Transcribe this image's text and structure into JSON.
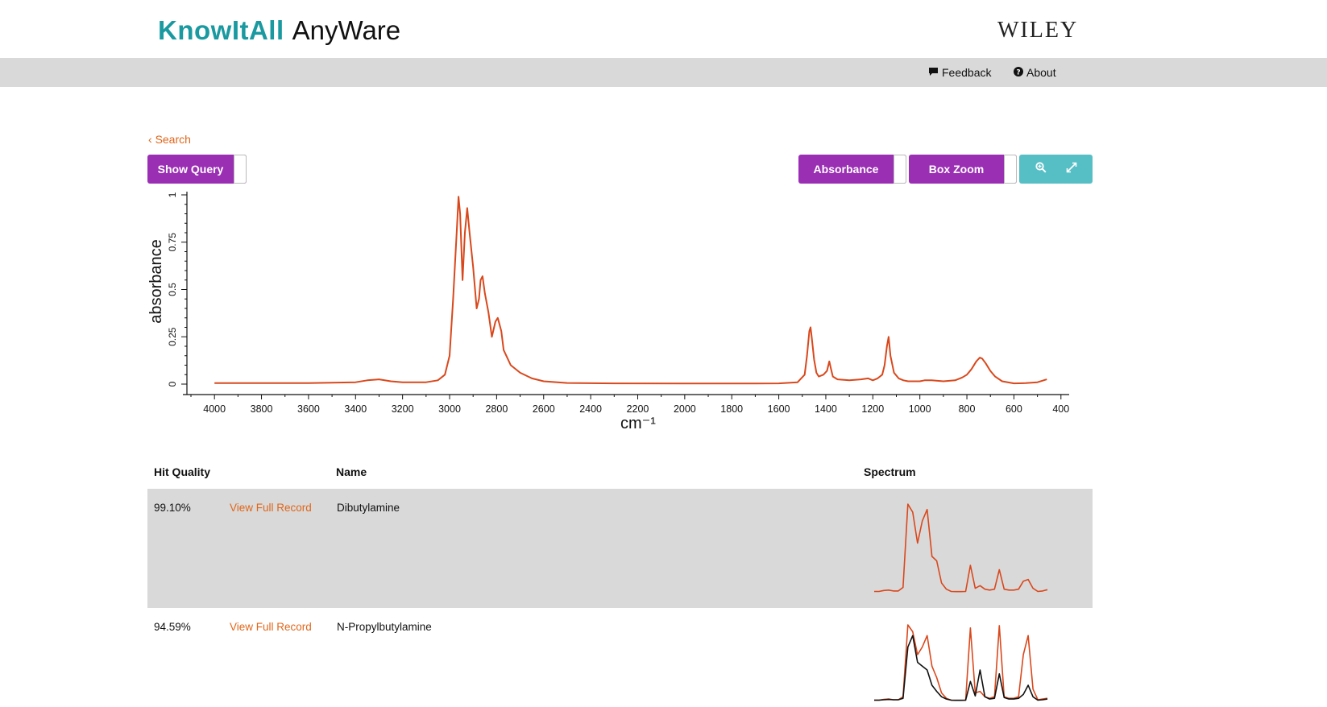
{
  "header": {
    "brand_bold": "KnowItAll",
    "brand_light": "AnyWare",
    "publisher": "WILEY"
  },
  "nav": {
    "feedback_label": "Feedback",
    "about_label": "About",
    "feedback_icon": "comment-icon",
    "about_icon": "question-circle-icon"
  },
  "toolbar": {
    "back_label": "Search",
    "show_query_label": "Show Query",
    "absorbance_label": "Absorbance",
    "box_zoom_label": "Box Zoom",
    "zoom_icon": "zoom-in-icon",
    "expand_icon": "expand-icon"
  },
  "colors": {
    "brand_teal": "#1a9aa0",
    "accent_orange": "#e0661a",
    "button_purple": "#9a2fb3",
    "button_teal": "#56bfc6",
    "spectrum_line": "#d9481c",
    "reference_line": "#111111"
  },
  "chart_data": {
    "type": "line",
    "xlabel": "cm⁻¹",
    "ylabel": "absorbance",
    "xlim": [
      4100,
      365
    ],
    "ylim": [
      0,
      1
    ],
    "x_ticks": [
      4000,
      3800,
      3600,
      3400,
      3200,
      3000,
      2800,
      2600,
      2400,
      2200,
      2000,
      1800,
      1600,
      1400,
      1200,
      1000,
      800,
      600,
      400
    ],
    "y_ticks": [
      0,
      0.25,
      0.5,
      0.75,
      1
    ],
    "series": [
      {
        "x": [
          4000,
          3600,
          3400,
          3350,
          3300,
          3250,
          3200,
          3100,
          3050,
          3020,
          3000,
          2985,
          2970,
          2962,
          2955,
          2945,
          2935,
          2925,
          2915,
          2900,
          2885,
          2875,
          2868,
          2860,
          2850,
          2835,
          2820,
          2805,
          2795,
          2780,
          2770,
          2740,
          2700,
          2650,
          2600,
          2500,
          2300,
          2000,
          1700,
          1600,
          1520,
          1490,
          1480,
          1470,
          1465,
          1460,
          1450,
          1440,
          1430,
          1410,
          1395,
          1385,
          1378,
          1370,
          1350,
          1300,
          1250,
          1220,
          1200,
          1180,
          1160,
          1150,
          1140,
          1133,
          1125,
          1110,
          1090,
          1070,
          1050,
          1000,
          980,
          950,
          900,
          850,
          820,
          800,
          780,
          760,
          745,
          735,
          720,
          700,
          680,
          650,
          600,
          550,
          500,
          460
        ],
        "y": [
          0.005,
          0.005,
          0.01,
          0.02,
          0.025,
          0.015,
          0.01,
          0.01,
          0.02,
          0.05,
          0.15,
          0.45,
          0.8,
          0.99,
          0.9,
          0.55,
          0.8,
          0.93,
          0.8,
          0.62,
          0.4,
          0.45,
          0.55,
          0.57,
          0.48,
          0.38,
          0.25,
          0.33,
          0.35,
          0.28,
          0.18,
          0.1,
          0.06,
          0.03,
          0.015,
          0.006,
          0.004,
          0.003,
          0.003,
          0.004,
          0.01,
          0.05,
          0.15,
          0.28,
          0.3,
          0.25,
          0.13,
          0.06,
          0.04,
          0.05,
          0.07,
          0.12,
          0.08,
          0.04,
          0.025,
          0.02,
          0.025,
          0.03,
          0.02,
          0.03,
          0.05,
          0.1,
          0.2,
          0.25,
          0.15,
          0.06,
          0.03,
          0.02,
          0.015,
          0.015,
          0.02,
          0.02,
          0.015,
          0.02,
          0.035,
          0.05,
          0.08,
          0.12,
          0.14,
          0.135,
          0.11,
          0.07,
          0.04,
          0.015,
          0.004,
          0.005,
          0.01,
          0.025
        ]
      }
    ]
  },
  "results": {
    "headers": [
      "Hit Quality",
      "Name",
      "Spectrum"
    ],
    "link_label": "View Full Record",
    "rows": [
      {
        "hit_quality": "99.10%",
        "name": "Dibutylamine",
        "spectra": [
          {
            "color": "#d9481c",
            "y": [
              0.005,
              0.005,
              0.015,
              0.02,
              0.01,
              0.01,
              0.05,
              0.99,
              0.9,
              0.55,
              0.8,
              0.93,
              0.4,
              0.35,
              0.1,
              0.03,
              0.005,
              0.003,
              0.003,
              0.005,
              0.3,
              0.04,
              0.07,
              0.03,
              0.02,
              0.03,
              0.25,
              0.03,
              0.02,
              0.02,
              0.03,
              0.12,
              0.14,
              0.04,
              0.005,
              0.01,
              0.025
            ]
          }
        ]
      },
      {
        "hit_quality": "94.59%",
        "name": "N-Propylbutylamine",
        "spectra": [
          {
            "color": "#d9481c",
            "y": [
              0.005,
              0.005,
              0.015,
              0.02,
              0.01,
              0.01,
              0.05,
              0.99,
              0.9,
              0.6,
              0.7,
              0.85,
              0.45,
              0.3,
              0.1,
              0.03,
              0.005,
              0.003,
              0.003,
              0.005,
              0.95,
              0.1,
              0.12,
              0.05,
              0.03,
              0.05,
              0.98,
              0.05,
              0.03,
              0.03,
              0.05,
              0.6,
              0.85,
              0.15,
              0.01,
              0.02,
              0.03
            ]
          },
          {
            "color": "#111111",
            "y": [
              0.005,
              0.005,
              0.01,
              0.015,
              0.01,
              0.01,
              0.03,
              0.7,
              0.85,
              0.5,
              0.45,
              0.4,
              0.2,
              0.12,
              0.05,
              0.02,
              0.005,
              0.003,
              0.003,
              0.005,
              0.25,
              0.06,
              0.4,
              0.05,
              0.02,
              0.03,
              0.35,
              0.04,
              0.02,
              0.02,
              0.03,
              0.08,
              0.2,
              0.05,
              0.005,
              0.01,
              0.02
            ]
          }
        ]
      }
    ]
  }
}
